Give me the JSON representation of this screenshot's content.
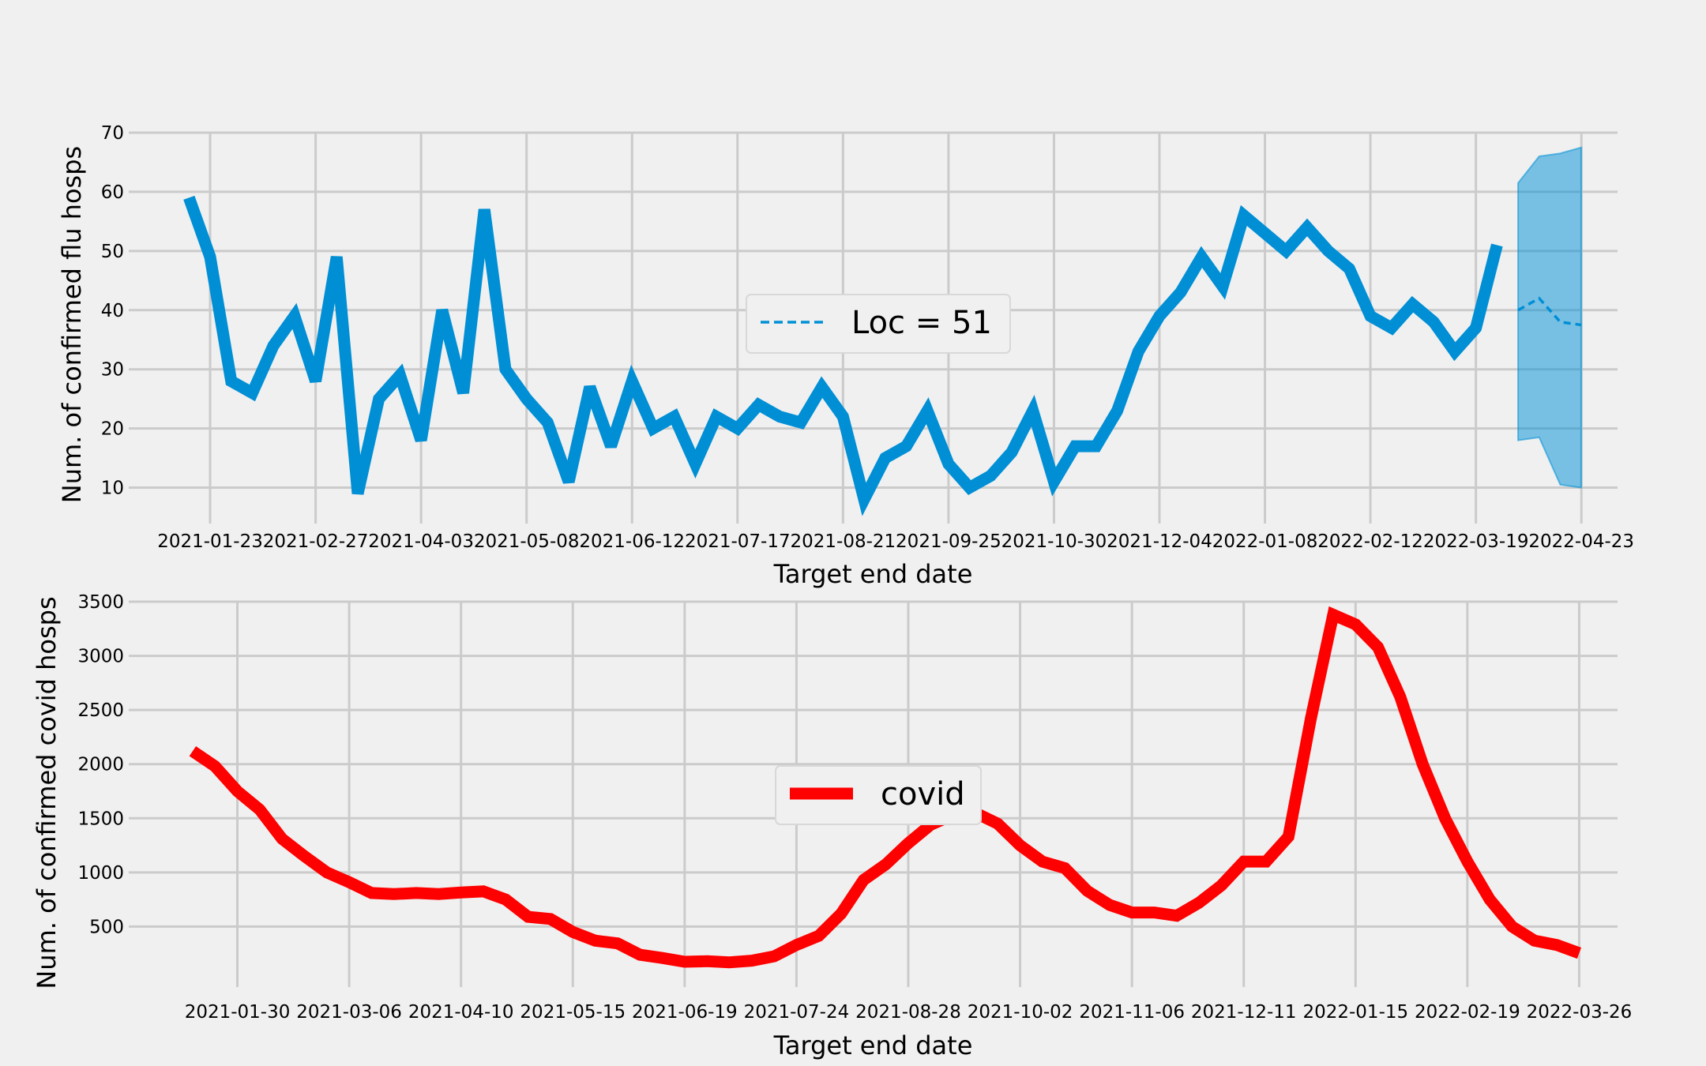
{
  "chart_data": [
    {
      "type": "line",
      "title": "",
      "xlabel": "Target end date",
      "ylabel": "Num. of confirmed flu hosps",
      "x_tick_labels": [
        "2021-01-23",
        "2021-02-27",
        "2021-04-03",
        "2021-05-08",
        "2021-06-12",
        "2021-07-17",
        "2021-08-21",
        "2021-09-25",
        "2021-10-30",
        "2021-12-04",
        "2022-01-08",
        "2022-02-12",
        "2022-03-19",
        "2022-04-23"
      ],
      "y_ticks": [
        10,
        20,
        30,
        40,
        50,
        60,
        70
      ],
      "ylim": [
        5,
        70
      ],
      "x_start": "2021-01-16",
      "x_step_days": 7,
      "grid": true,
      "legend": {
        "placement": "center",
        "entries": [
          "Loc = 51"
        ]
      },
      "series": [
        {
          "kind": "observed",
          "color": "#008fd5",
          "values": [
            59,
            49,
            28,
            26,
            34,
            39,
            28,
            49,
            9,
            25,
            29,
            18,
            40,
            26,
            57,
            30,
            25,
            21,
            11,
            27,
            17,
            28,
            20,
            22,
            14,
            22,
            20,
            24,
            22,
            21,
            27,
            22,
            8,
            15,
            17,
            23,
            14,
            10,
            12,
            16,
            23,
            11,
            17,
            17,
            23,
            33,
            39,
            43,
            49,
            44,
            56,
            53,
            50,
            54,
            50,
            47,
            39,
            37,
            41,
            38,
            33,
            37,
            51
          ]
        },
        {
          "name": "Loc = 51",
          "kind": "forecast",
          "color": "#008fd5",
          "dates": [
            "2022-04-02",
            "2022-04-09",
            "2022-04-16",
            "2022-04-23"
          ],
          "median": [
            40,
            42,
            38,
            37.5
          ],
          "lower": [
            18,
            18.5,
            10.5,
            10
          ],
          "upper": [
            61.5,
            66,
            66.5,
            67.5
          ]
        }
      ]
    },
    {
      "type": "line",
      "title": "",
      "xlabel": "Target end date",
      "ylabel": "Num. of confirmed covid hosps",
      "x_tick_labels": [
        "2021-01-30",
        "2021-03-06",
        "2021-04-10",
        "2021-05-15",
        "2021-06-19",
        "2021-07-24",
        "2021-08-28",
        "2021-10-02",
        "2021-11-06",
        "2021-12-11",
        "2022-01-15",
        "2022-02-19",
        "2022-03-26"
      ],
      "y_ticks": [
        500,
        1000,
        1500,
        2000,
        2500,
        3000,
        3500
      ],
      "ylim": [
        0,
        3500
      ],
      "x_start": "2021-01-16",
      "x_step_days": 7,
      "grid": true,
      "legend": {
        "placement": "center",
        "entries": [
          "covid"
        ]
      },
      "series": [
        {
          "name": "covid",
          "color": "#ff0000",
          "values": [
            2120,
            1980,
            1750,
            1580,
            1310,
            1150,
            1000,
            910,
            810,
            800,
            810,
            800,
            815,
            825,
            750,
            590,
            570,
            450,
            370,
            345,
            240,
            210,
            175,
            180,
            170,
            185,
            225,
            330,
            415,
            620,
            930,
            1075,
            1270,
            1440,
            1530,
            1550,
            1450,
            1250,
            1100,
            1040,
            830,
            700,
            630,
            630,
            600,
            720,
            880,
            1100,
            1100,
            1330,
            2420,
            3380,
            3290,
            3080,
            2620,
            2000,
            1500,
            1100,
            750,
            500,
            370,
            330,
            255
          ]
        }
      ]
    }
  ]
}
